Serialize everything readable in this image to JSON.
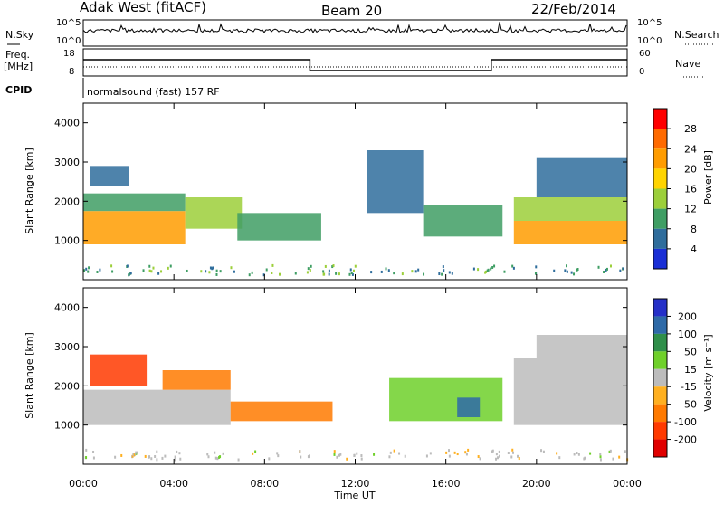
{
  "header": {
    "station": "Adak West (fitACF)",
    "beam": "Beam 20",
    "date": "22/Feb/2014"
  },
  "top_panels": {
    "nsky_label": "N.Sky",
    "nsearch_label": "N.Search",
    "nsky_ticks": [
      "10^5",
      "10^0"
    ],
    "nsearch_ticks": [
      "10^5",
      "10^0"
    ],
    "freq_label_line1": "Freq.",
    "freq_label_line2": "[MHz]",
    "freq_ticks": [
      "18",
      "8"
    ],
    "nave_label": "Nave",
    "nave_ticks": [
      "60",
      "0"
    ],
    "cpid_label": "CPID",
    "cpid_text": "normalsound (fast) 157 RF"
  },
  "axes": {
    "xlabel": "Time UT",
    "xticks": [
      "00:00",
      "04:00",
      "08:00",
      "12:00",
      "16:00",
      "20:00",
      "00:00"
    ],
    "ylabel": "Slant Range [km]",
    "yticks": [
      "1000",
      "2000",
      "3000",
      "4000"
    ]
  },
  "power_scale": {
    "label": "Power [dB]",
    "ticks": [
      "28",
      "24",
      "20",
      "16",
      "12",
      "8",
      "4"
    ],
    "colors": [
      "#ff0000",
      "#ff6a00",
      "#ff9c00",
      "#ffd400",
      "#9ccf3a",
      "#3f9e64",
      "#2f6d9c",
      "#1a2fd6"
    ]
  },
  "velocity_scale": {
    "label": "Velocity [m s⁻¹]",
    "ticks": [
      "200",
      "100",
      "50",
      "15",
      "-15",
      "-50",
      "-100",
      "-200"
    ],
    "colors": [
      "#2530c8",
      "#2e6aa8",
      "#2f8f4a",
      "#6fd02a",
      "#bcbcbc",
      "#ffb020",
      "#ff7a00",
      "#ff3a00",
      "#e00000"
    ]
  },
  "chart_data": [
    {
      "type": "heatmap",
      "title": "Power [dB]",
      "xlabel": "Time UT",
      "ylabel": "Slant Range [km]",
      "xlim": [
        "00:00",
        "24:00"
      ],
      "ylim": [
        0,
        4500
      ],
      "regions": [
        {
          "t0": 0.0,
          "t1": 4.5,
          "r0": 900,
          "r1": 1750,
          "value": 22
        },
        {
          "t0": 0.0,
          "t1": 4.5,
          "r0": 1750,
          "r1": 2200,
          "value": 12
        },
        {
          "t0": 0.3,
          "t1": 2.0,
          "r0": 2400,
          "r1": 2900,
          "value": 8
        },
        {
          "t0": 4.5,
          "t1": 7.0,
          "r0": 1300,
          "r1": 2100,
          "value": 14
        },
        {
          "t0": 6.8,
          "t1": 10.5,
          "r0": 1000,
          "r1": 1700,
          "value": 9
        },
        {
          "t0": 12.5,
          "t1": 15.0,
          "r0": 1700,
          "r1": 3300,
          "value": 8
        },
        {
          "t0": 15.0,
          "t1": 18.5,
          "r0": 1100,
          "r1": 1900,
          "value": 12
        },
        {
          "t0": 19.0,
          "t1": 24.0,
          "r0": 900,
          "r1": 1500,
          "value": 24
        },
        {
          "t0": 19.0,
          "t1": 24.0,
          "r0": 1500,
          "r1": 2100,
          "value": 14
        },
        {
          "t0": 20.0,
          "t1": 24.0,
          "r0": 2100,
          "r1": 3100,
          "value": 8
        }
      ]
    },
    {
      "type": "heatmap",
      "title": "Velocity [m s⁻¹]",
      "xlabel": "Time UT",
      "ylabel": "Slant Range [km]",
      "xlim": [
        "00:00",
        "24:00"
      ],
      "ylim": [
        0,
        4500
      ],
      "regions": [
        {
          "t0": 0.0,
          "t1": 6.5,
          "r0": 1000,
          "r1": 1900,
          "value": 0
        },
        {
          "t0": 0.3,
          "t1": 2.8,
          "r0": 2000,
          "r1": 2800,
          "value": -180
        },
        {
          "t0": 3.5,
          "t1": 6.5,
          "r0": 1900,
          "r1": 2400,
          "value": -70
        },
        {
          "t0": 6.5,
          "t1": 11.0,
          "r0": 1100,
          "r1": 1600,
          "value": -60
        },
        {
          "t0": 13.5,
          "t1": 18.5,
          "r0": 1100,
          "r1": 2200,
          "value": 40
        },
        {
          "t0": 16.5,
          "t1": 17.5,
          "r0": 1200,
          "r1": 1700,
          "value": 150
        },
        {
          "t0": 19.0,
          "t1": 24.0,
          "r0": 1000,
          "r1": 2700,
          "value": 0
        },
        {
          "t0": 20.0,
          "t1": 24.0,
          "r0": 2700,
          "r1": 3300,
          "value": 0
        }
      ]
    },
    {
      "type": "line",
      "title": "Freq. [MHz]",
      "ylim": [
        8,
        18
      ],
      "x": [
        "00:00",
        "10:00",
        "10:00",
        "18:00",
        "18:00",
        "24:00"
      ],
      "values": [
        14,
        14,
        10,
        10,
        14,
        14
      ]
    }
  ]
}
